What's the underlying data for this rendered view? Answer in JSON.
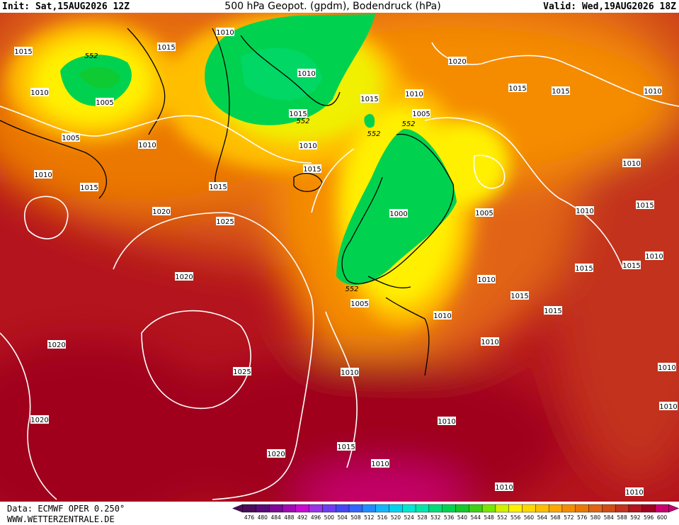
{
  "header": {
    "init": "Init: Sat,15AUG2026 12Z",
    "title": "500 hPa Geopot. (gpdm), Bodendruck (hPa)",
    "valid": "Valid: Wed,19AUG2026 18Z"
  },
  "isobar_labels": [
    "1015",
    "1015",
    "1010",
    "1010",
    "1020",
    "1015",
    "1015",
    "1010",
    "1010",
    "1005",
    "1015",
    "1010",
    "1005",
    "1015",
    "1005",
    "1010",
    "1010",
    "1015",
    "1010",
    "1015",
    "1015",
    "1010",
    "1020",
    "1025",
    "1000",
    "1005",
    "1010",
    "1015",
    "1010",
    "1015",
    "1015",
    "1020",
    "1010",
    "1015",
    "1005",
    "1015",
    "1010",
    "1010",
    "1020",
    "1025",
    "1010",
    "1010",
    "1010",
    "1020",
    "1010",
    "1015",
    "1020",
    "1010",
    "1010",
    "1010"
  ],
  "geopotential_labels": [
    "552",
    "552",
    "552",
    "552",
    "552"
  ],
  "footer": {
    "data": "Data: ECMWF OPER 0.250°",
    "site": "WWW.WETTERZENTRALE.DE"
  },
  "legend": {
    "levels": [
      476,
      480,
      484,
      488,
      492,
      496,
      500,
      504,
      508,
      512,
      516,
      520,
      524,
      528,
      532,
      536,
      540,
      544,
      548,
      552,
      556,
      560,
      564,
      568,
      572,
      576,
      580,
      584,
      588,
      592,
      596,
      600
    ],
    "colors": [
      "#4b0a5a",
      "#5a0a78",
      "#7d0a96",
      "#a00ab4",
      "#c80ad2",
      "#9a32e6",
      "#6e3cf0",
      "#4646f5",
      "#3264ff",
      "#1e8cff",
      "#14b4ff",
      "#00d2f0",
      "#00e6d2",
      "#00e6aa",
      "#00dc78",
      "#00d250",
      "#14c828",
      "#3cd214",
      "#78e600",
      "#d2f000",
      "#fff000",
      "#ffd700",
      "#ffbe00",
      "#ffa500",
      "#f58c00",
      "#eb7800",
      "#e16414",
      "#d24b14",
      "#c3321e",
      "#b4141e",
      "#a0001e",
      "#c8006e"
    ]
  }
}
